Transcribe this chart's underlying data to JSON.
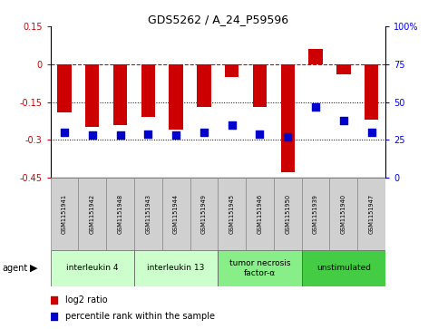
{
  "title": "GDS5262 / A_24_P59596",
  "samples": [
    "GSM1151941",
    "GSM1151942",
    "GSM1151948",
    "GSM1151943",
    "GSM1151944",
    "GSM1151949",
    "GSM1151945",
    "GSM1151946",
    "GSM1151950",
    "GSM1151939",
    "GSM1151940",
    "GSM1151947"
  ],
  "log2_ratios": [
    -0.19,
    -0.25,
    -0.24,
    -0.21,
    -0.26,
    -0.17,
    -0.05,
    -0.17,
    -0.43,
    0.06,
    -0.04,
    -0.22
  ],
  "percentile_ranks": [
    30,
    28,
    28,
    29,
    28,
    30,
    35,
    29,
    27,
    47,
    38,
    30
  ],
  "ylim_left": [
    -0.45,
    0.15
  ],
  "ylim_right": [
    0,
    100
  ],
  "yticks_left": [
    0.15,
    0.0,
    -0.15,
    -0.3,
    -0.45
  ],
  "yticks_right": [
    100,
    75,
    50,
    25,
    0
  ],
  "hlines": [
    -0.15,
    -0.3
  ],
  "agent_groups": [
    {
      "label": "interleukin 4",
      "indices": [
        0,
        1,
        2
      ],
      "color": "#ccffcc"
    },
    {
      "label": "interleukin 13",
      "indices": [
        3,
        4,
        5
      ],
      "color": "#ccffcc"
    },
    {
      "label": "tumor necrosis\nfactor-α",
      "indices": [
        6,
        7,
        8
      ],
      "color": "#88ee88"
    },
    {
      "label": "unstimulated",
      "indices": [
        9,
        10,
        11
      ],
      "color": "#44cc44"
    }
  ],
  "bar_color": "#cc0000",
  "blue_color": "#0000cc",
  "zero_line_color": "#cc0000",
  "bg_color": "#ffffff",
  "bar_width": 0.5,
  "legend_items": [
    {
      "label": "log2 ratio",
      "color": "#cc0000"
    },
    {
      "label": "percentile rank within the sample",
      "color": "#0000cc"
    }
  ]
}
